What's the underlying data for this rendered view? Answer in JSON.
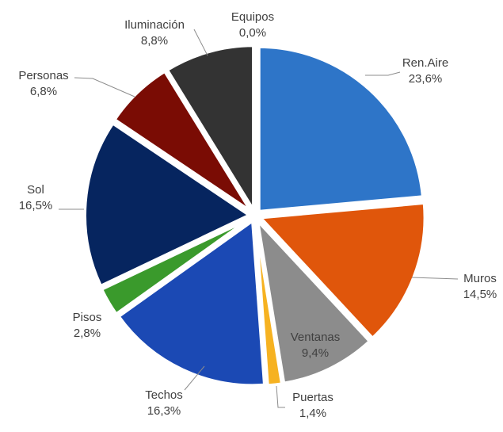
{
  "chart_data": {
    "type": "pie",
    "title": "",
    "slices": [
      {
        "category": "Ren.Aire",
        "value": 23.6,
        "label": "23,6%",
        "color": "#2e75c8"
      },
      {
        "category": "Muros",
        "value": 14.5,
        "label": "14,5%",
        "color": "#e0560b"
      },
      {
        "category": "Ventanas",
        "value": 9.4,
        "label": "9,4%",
        "color": "#8c8c8c"
      },
      {
        "category": "Puertas",
        "value": 1.4,
        "label": "1,4%",
        "color": "#f6b221"
      },
      {
        "category": "Techos",
        "value": 16.3,
        "label": "16,3%",
        "color": "#1b49b4"
      },
      {
        "category": "Pisos",
        "value": 2.8,
        "label": "2,8%",
        "color": "#3a9a2c"
      },
      {
        "category": "Sol",
        "value": 16.5,
        "label": "16,5%",
        "color": "#06255f"
      },
      {
        "category": "Personas",
        "value": 6.8,
        "label": "6,8%",
        "color": "#7a0c04"
      },
      {
        "category": "Iluminación",
        "value": 8.8,
        "label": "8,8%",
        "color": "#333333"
      },
      {
        "category": "Equipos",
        "value": 0.0,
        "label": "0,0%",
        "color": "#a5a5a5"
      }
    ],
    "legend": "none"
  }
}
